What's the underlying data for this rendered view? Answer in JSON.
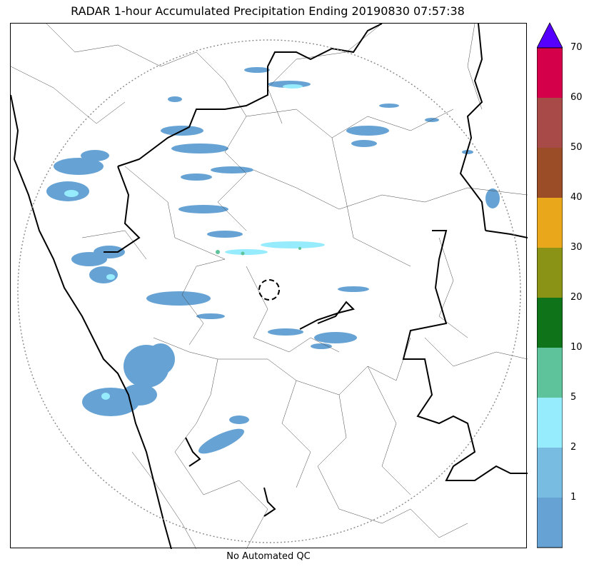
{
  "title": "RADAR 1-hour Accumulated Precipitation Ending 20190830 07:57:38",
  "footer": "No Automated QC",
  "colorbar": {
    "extend": "max",
    "extend_color": "#5500ff",
    "ticks": [
      "1",
      "2",
      "5",
      "10",
      "20",
      "30",
      "40",
      "50",
      "60",
      "70"
    ],
    "colors": [
      "#66a3d4",
      "#78bce2",
      "#96ecfc",
      "#5ec39a",
      "#0f7319",
      "#8a9316",
      "#e9a81c",
      "#9b4d27",
      "#a84b48",
      "#d4004a"
    ]
  },
  "map": {
    "radar_range_ring": "dotted",
    "radar_site_marker": "dashed-circle",
    "basemap": "coastline, state and district boundaries"
  }
}
